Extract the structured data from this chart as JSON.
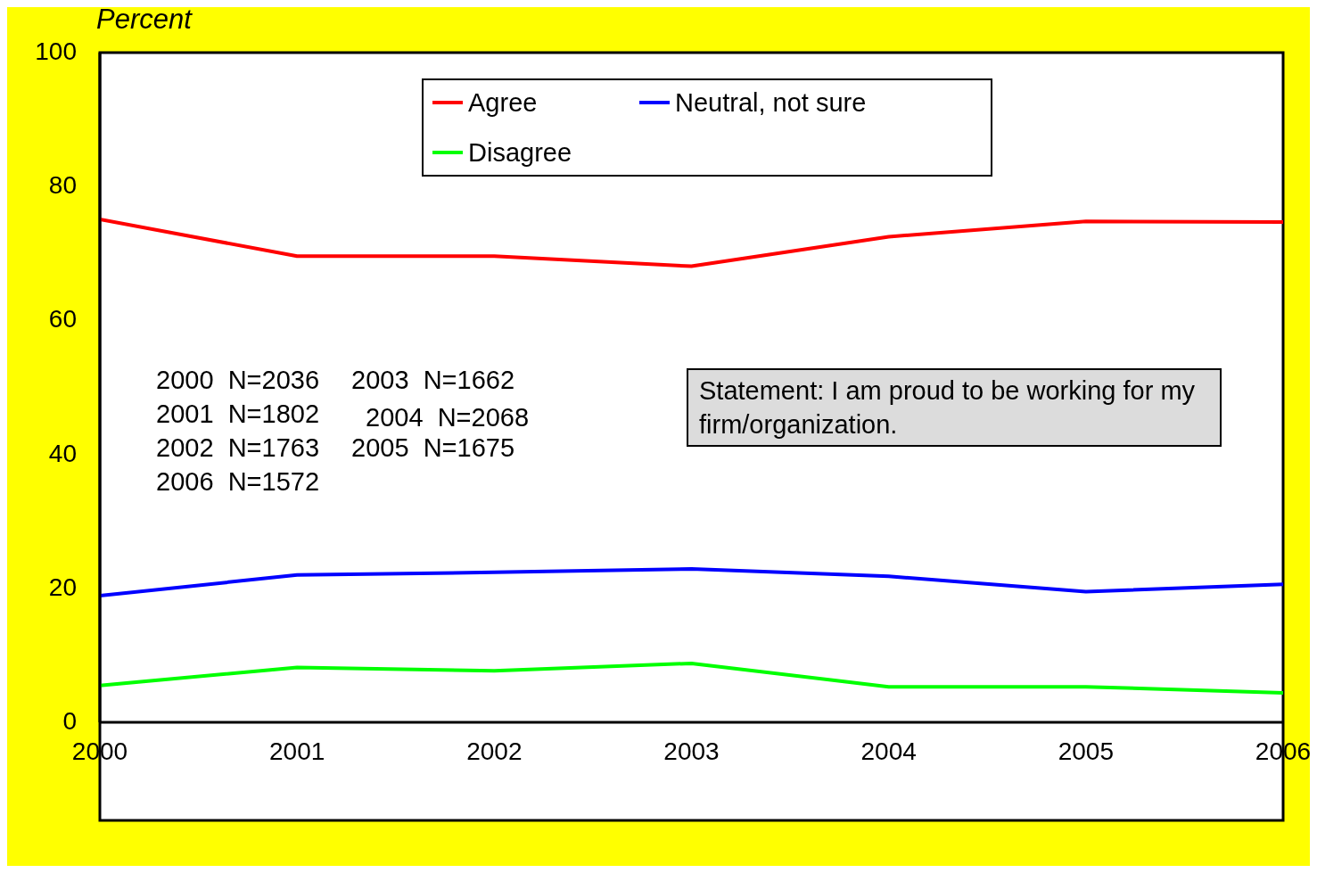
{
  "chart_data": {
    "type": "line",
    "ylabel": "Percent",
    "x": [
      2000,
      2001,
      2002,
      2003,
      2004,
      2005,
      2006
    ],
    "xlim": [
      2000,
      2006
    ],
    "xticks": [
      2000,
      2001,
      2002,
      2003,
      2004,
      2005,
      2006
    ],
    "ylim": [
      0,
      100
    ],
    "yticks": [
      0,
      20,
      40,
      60,
      80,
      100
    ],
    "legend": "top",
    "marker": "none",
    "line_style": "solid",
    "series": [
      {
        "name": "Agree",
        "color": "#ff0000",
        "values": [
          75.1,
          69.6,
          69.6,
          68.1,
          72.5,
          74.8,
          74.7
        ]
      },
      {
        "name": "Neutral, not sure",
        "color": "#0000ff",
        "values": [
          18.9,
          22.0,
          22.4,
          22.9,
          21.8,
          19.5,
          20.6
        ]
      },
      {
        "name": "Disagree",
        "color": "#00ff00",
        "values": [
          5.5,
          8.2,
          7.7,
          8.8,
          5.3,
          5.3,
          4.4
        ]
      }
    ],
    "annotations": [
      "2000  N=2036",
      "2001  N=1802",
      "2002  N=1763",
      "2006  N=1572",
      "2003  N=1662",
      "2004  N=2068",
      "2005  N=1675",
      "Statement: I am proud to be working for my firm/organization."
    ]
  }
}
